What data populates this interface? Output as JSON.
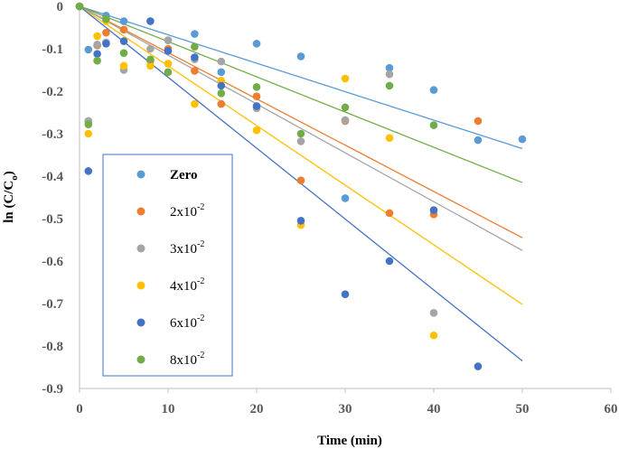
{
  "chart_data": {
    "type": "scatter",
    "xlabel": "Time (min)",
    "ylabel_main": "ln (C/C",
    "ylabel_sub": "o",
    "ylabel_close": ")",
    "xlim": [
      0,
      60
    ],
    "ylim": [
      -0.9,
      0
    ],
    "xticks": [
      0,
      10,
      20,
      30,
      40,
      50,
      60
    ],
    "yticks": [
      0,
      -0.1,
      -0.2,
      -0.3,
      -0.4,
      -0.5,
      -0.6,
      -0.7,
      -0.8,
      -0.9
    ],
    "ytick_labels": [
      "0",
      "-0.1",
      "-0.2",
      "-0.3",
      "-0.4",
      "-0.5",
      "-0.6",
      "-0.7",
      "-0.8",
      "-0.9"
    ],
    "xtick_labels": [
      "0",
      "10",
      "20",
      "30",
      "40",
      "50",
      "60"
    ],
    "grid": false,
    "legend_position": "left",
    "series": [
      {
        "name": "Zero",
        "label_base": "Zero",
        "label_exp": "",
        "bold": true,
        "color": "#5B9BD5",
        "points": [
          [
            0,
            0
          ],
          [
            1,
            -0.102
          ],
          [
            2,
            -0.092
          ],
          [
            3,
            -0.022
          ],
          [
            5,
            -0.035
          ],
          [
            10,
            -0.08
          ],
          [
            13,
            -0.065
          ],
          [
            16,
            -0.155
          ],
          [
            20,
            -0.088
          ],
          [
            25,
            -0.118
          ],
          [
            30,
            -0.452
          ],
          [
            35,
            -0.145
          ],
          [
            40,
            -0.197
          ],
          [
            45,
            -0.315
          ],
          [
            50,
            -0.313
          ]
        ],
        "trend": [
          [
            0,
            0
          ],
          [
            50,
            -0.335
          ]
        ]
      },
      {
        "name": "2x10-2",
        "label_base": "2x10",
        "label_exp": "-2",
        "bold": false,
        "color": "#ED7D31",
        "points": [
          [
            0,
            0
          ],
          [
            1,
            -0.27
          ],
          [
            2,
            -0.092
          ],
          [
            3,
            -0.062
          ],
          [
            5,
            -0.055
          ],
          [
            8,
            -0.128
          ],
          [
            10,
            -0.1
          ],
          [
            13,
            -0.152
          ],
          [
            16,
            -0.23
          ],
          [
            20,
            -0.212
          ],
          [
            25,
            -0.41
          ],
          [
            30,
            -0.27
          ],
          [
            35,
            -0.487
          ],
          [
            40,
            -0.49
          ],
          [
            45,
            -0.27
          ]
        ],
        "trend": [
          [
            0,
            0
          ],
          [
            50,
            -0.545
          ]
        ]
      },
      {
        "name": "3x10-2",
        "label_base": "3x10",
        "label_exp": "-2",
        "bold": false,
        "color": "#A5A5A5",
        "points": [
          [
            0,
            0
          ],
          [
            1,
            -0.27
          ],
          [
            2,
            -0.09
          ],
          [
            3,
            -0.085
          ],
          [
            5,
            -0.15
          ],
          [
            8,
            -0.1
          ],
          [
            10,
            -0.08
          ],
          [
            13,
            -0.125
          ],
          [
            16,
            -0.13
          ],
          [
            20,
            -0.24
          ],
          [
            25,
            -0.318
          ],
          [
            30,
            -0.268
          ],
          [
            35,
            -0.16
          ],
          [
            40,
            -0.722
          ]
        ],
        "trend": [
          [
            0,
            0
          ],
          [
            50,
            -0.575
          ]
        ]
      },
      {
        "name": "4x10-2",
        "label_base": "4x10",
        "label_exp": "-2",
        "bold": false,
        "color": "#FFC000",
        "points": [
          [
            0,
            0
          ],
          [
            1,
            -0.3
          ],
          [
            2,
            -0.07
          ],
          [
            3,
            -0.035
          ],
          [
            5,
            -0.14
          ],
          [
            8,
            -0.14
          ],
          [
            10,
            -0.135
          ],
          [
            13,
            -0.23
          ],
          [
            16,
            -0.175
          ],
          [
            20,
            -0.292
          ],
          [
            25,
            -0.515
          ],
          [
            30,
            -0.17
          ],
          [
            35,
            -0.31
          ],
          [
            40,
            -0.775
          ]
        ],
        "trend": [
          [
            0,
            0
          ],
          [
            50,
            -0.702
          ]
        ]
      },
      {
        "name": "6x10-2",
        "label_base": "6x10",
        "label_exp": "-2",
        "bold": false,
        "color": "#4472C4",
        "points": [
          [
            0,
            0
          ],
          [
            1,
            -0.388
          ],
          [
            2,
            -0.112
          ],
          [
            3,
            -0.088
          ],
          [
            5,
            -0.082
          ],
          [
            8,
            -0.035
          ],
          [
            10,
            -0.105
          ],
          [
            13,
            -0.12
          ],
          [
            16,
            -0.187
          ],
          [
            20,
            -0.235
          ],
          [
            25,
            -0.505
          ],
          [
            30,
            -0.678
          ],
          [
            35,
            -0.6
          ],
          [
            40,
            -0.48
          ],
          [
            45,
            -0.848
          ]
        ],
        "trend": [
          [
            0,
            0
          ],
          [
            50,
            -0.835
          ]
        ]
      },
      {
        "name": "8x10-2",
        "label_base": "8x10",
        "label_exp": "-2",
        "bold": false,
        "color": "#70AD47",
        "points": [
          [
            0,
            0
          ],
          [
            1,
            -0.278
          ],
          [
            2,
            -0.128
          ],
          [
            3,
            -0.03
          ],
          [
            5,
            -0.11
          ],
          [
            8,
            -0.125
          ],
          [
            10,
            -0.155
          ],
          [
            13,
            -0.095
          ],
          [
            16,
            -0.205
          ],
          [
            20,
            -0.19
          ],
          [
            25,
            -0.3
          ],
          [
            30,
            -0.238
          ],
          [
            35,
            -0.187
          ],
          [
            40,
            -0.28
          ]
        ],
        "trend": [
          [
            0,
            0
          ],
          [
            50,
            -0.415
          ]
        ]
      }
    ]
  }
}
